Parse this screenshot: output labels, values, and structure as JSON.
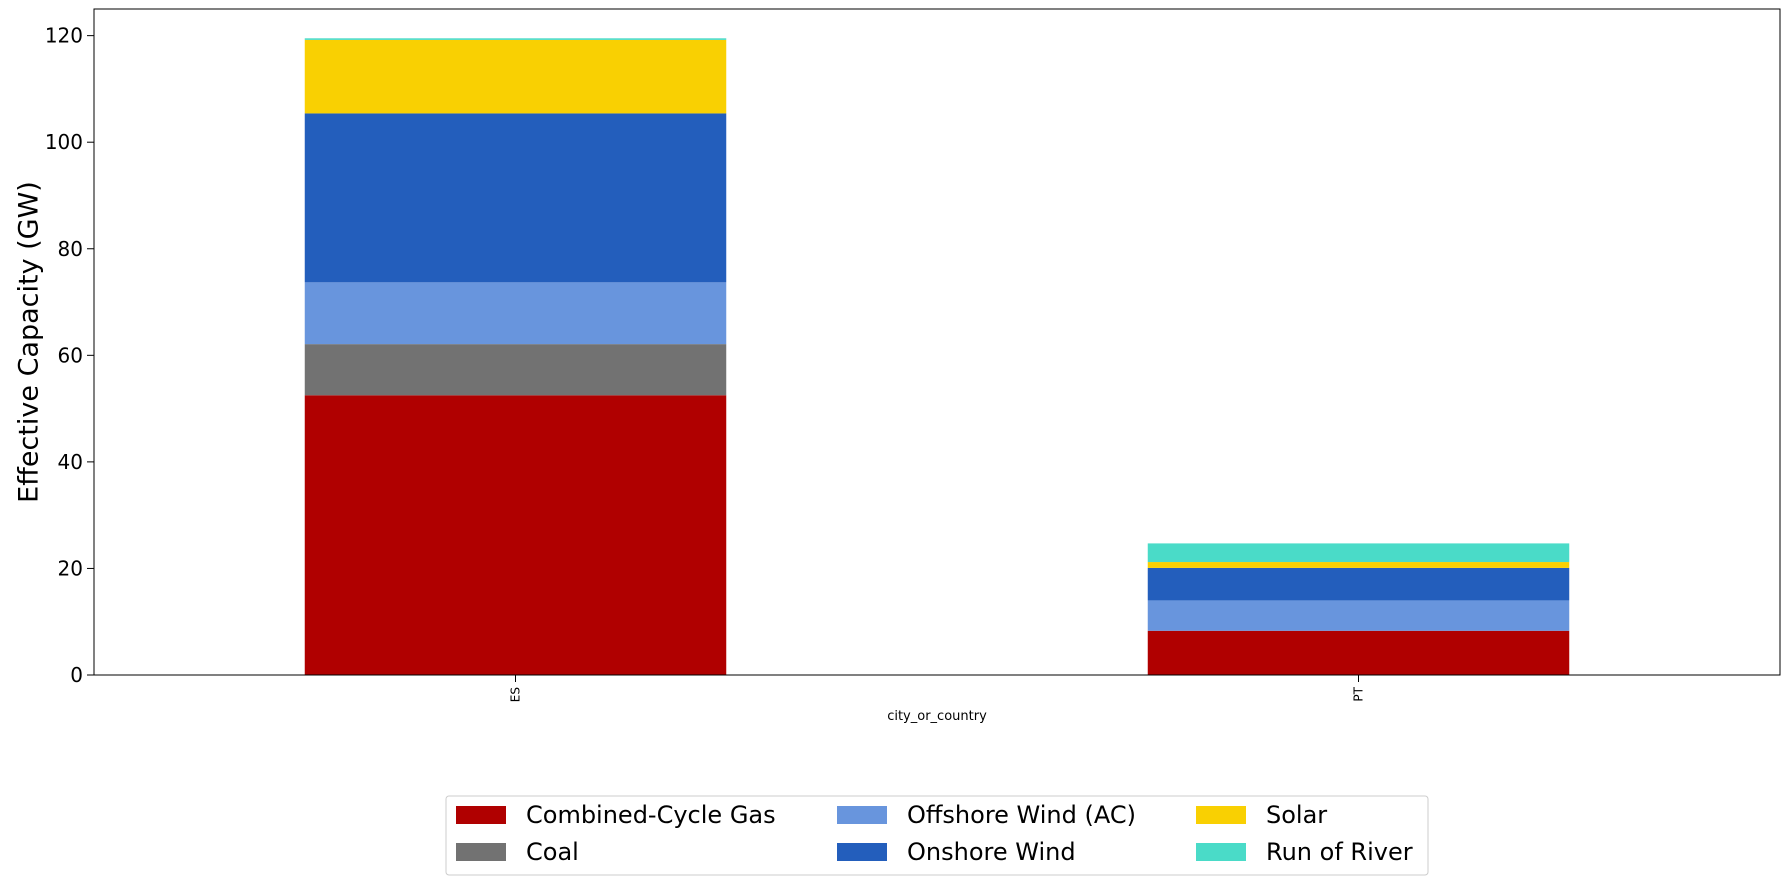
{
  "chart_data": {
    "type": "bar",
    "stacked": true,
    "categories": [
      "ES",
      "PT"
    ],
    "xlabel": "city_or_country",
    "ylabel": "Effective Capacity (GW)",
    "ylim": [
      0,
      125
    ],
    "yticks": [
      0,
      20,
      40,
      60,
      80,
      100,
      120
    ],
    "grid": false,
    "legend_position": "bottom-center",
    "legend_columns": 3,
    "series": [
      {
        "name": "Combined-Cycle Gas",
        "color": "#b00000",
        "values": [
          52.5,
          8.3
        ]
      },
      {
        "name": "Coal",
        "color": "#727272",
        "values": [
          9.6,
          0.0
        ]
      },
      {
        "name": "Offshore Wind (AC)",
        "color": "#6895dd",
        "values": [
          11.6,
          5.7
        ]
      },
      {
        "name": "Onshore Wind",
        "color": "#235ebc",
        "values": [
          31.7,
          6.1
        ]
      },
      {
        "name": "Solar",
        "color": "#f9d002",
        "values": [
          13.8,
          1.1
        ]
      },
      {
        "name": "Run of River",
        "color": "#4adbc8",
        "values": [
          0.3,
          3.5
        ]
      }
    ]
  }
}
